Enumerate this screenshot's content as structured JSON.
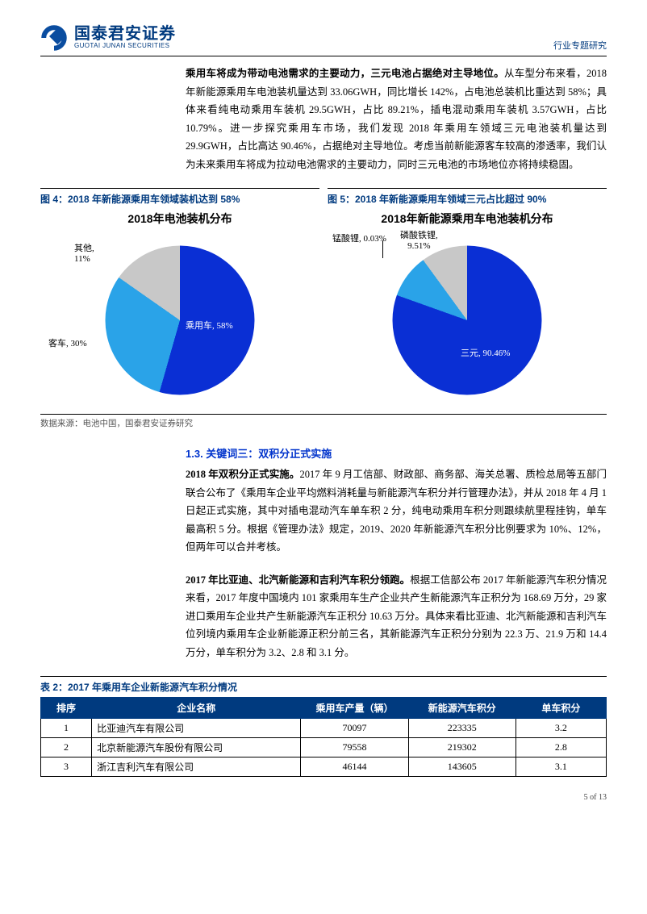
{
  "header": {
    "logo_cn": "国泰君安证券",
    "logo_en": "GUOTAI JUNAN SECURITIES",
    "right_label": "行业专题研究",
    "logo_fill": "#0a4da0",
    "logo_stroke": "#0a4da0"
  },
  "para1_bold": "乘用车将成为带动电池需求的主要动力，三元电池占据绝对主导地位。",
  "para1_rest": "从车型分布来看，2018 年新能源乘用车电池装机量达到 33.06GWH，同比增长 142%，占电池总装机比重达到 58%；具体来看纯电动乘用车装机 29.5GWH，占比 89.21%，插电混动乘用车装机 3.57GWH，占比 10.79%。进一步探究乘用车市场，我们发现 2018 年乘用车领域三元电池装机量达到 29.9GWH，占比高达 90.46%，占据绝对主导地位。考虑当前新能源客车较高的渗透率，我们认为未来乘用车将成为拉动电池需求的主要动力，同时三元电池的市场地位亦将持续稳固。",
  "fig4": {
    "caption": "图 4：2018 年新能源乘用车领域装机达到 58%",
    "title": "2018年电池装机分布",
    "slices": [
      {
        "label": "乘用车",
        "value": 58,
        "pct": "58%",
        "color": "#0a2fd4"
      },
      {
        "label": "客车",
        "value": 30,
        "pct": "30%",
        "color": "#2aa3e8"
      },
      {
        "label": "其他",
        "value": 11,
        "pct": "11%",
        "color": "#c8c8c8"
      }
    ],
    "pie_diameter": 185,
    "label_fontsize": 11
  },
  "fig5": {
    "caption": "图 5：2018 年新能源乘用车领域三元占比超过 90%",
    "title": "2018年新能源乘用车电池装机分布",
    "slices": [
      {
        "label": "三元",
        "value": 90.46,
        "pct": "90.46%",
        "color": "#0a2fd4"
      },
      {
        "label": "磷酸铁锂",
        "value": 9.51,
        "pct": "9.51%",
        "color": "#2aa3e8"
      },
      {
        "label": "锰酸锂",
        "value": 0.03,
        "pct": "0.03%",
        "color": "#c8c8c8"
      }
    ],
    "pie_diameter": 185,
    "label_fontsize": 11
  },
  "data_source": "数据来源：电池中国，国泰君安证券研究",
  "section13_heading": "1.3.  关键词三：双积分正式实施",
  "para2_bold": "2018 年双积分正式实施。",
  "para2_rest": "2017 年 9 月工信部、财政部、商务部、海关总署、质检总局等五部门联合公布了《乘用车企业平均燃料消耗量与新能源汽车积分并行管理办法》，并从 2018 年 4 月 1 日起正式实施，其中对插电混动汽车单车积 2 分，纯电动乘用车积分则跟续航里程挂钩，单车最高积 5 分。根据《管理办法》规定，2019、2020 年新能源汽车积分比例要求为 10%、12%，但两年可以合并考核。",
  "para3_bold": "2017 年比亚迪、北汽新能源和吉利汽车积分领跑。",
  "para3_rest": "根据工信部公布 2017 年新能源汽车积分情况来看，2017 年度中国境内 101 家乘用车生产企业共产生新能源汽车正积分为 168.69 万分，29 家进口乘用车企业共产生新能源汽车正积分 10.63 万分。具体来看比亚迪、北汽新能源和吉利汽车位列境内乘用车企业新能源正积分前三名，其新能源汽车正积分分别为 22.3 万、21.9 万和 14.4 万分，单车积分为 3.2、2.8 和 3.1 分。",
  "table2": {
    "caption": "表 2：2017 年乘用车企业新能源汽车积分情况",
    "header_bg": "#003a7f",
    "columns": [
      "排序",
      "企业名称",
      "乘用车产量（辆）",
      "新能源汽车积分",
      "单车积分"
    ],
    "col_align": [
      "center",
      "left",
      "center",
      "center",
      "center"
    ],
    "col_widths": [
      "9%",
      "37%",
      "19%",
      "19%",
      "16%"
    ],
    "rows": [
      [
        "1",
        "比亚迪汽车有限公司",
        "70097",
        "223335",
        "3.2"
      ],
      [
        "2",
        "北京新能源汽车股份有限公司",
        "79558",
        "219302",
        "2.8"
      ],
      [
        "3",
        "浙江吉利汽车有限公司",
        "46144",
        "143605",
        "3.1"
      ]
    ]
  },
  "footer": "5 of 13"
}
